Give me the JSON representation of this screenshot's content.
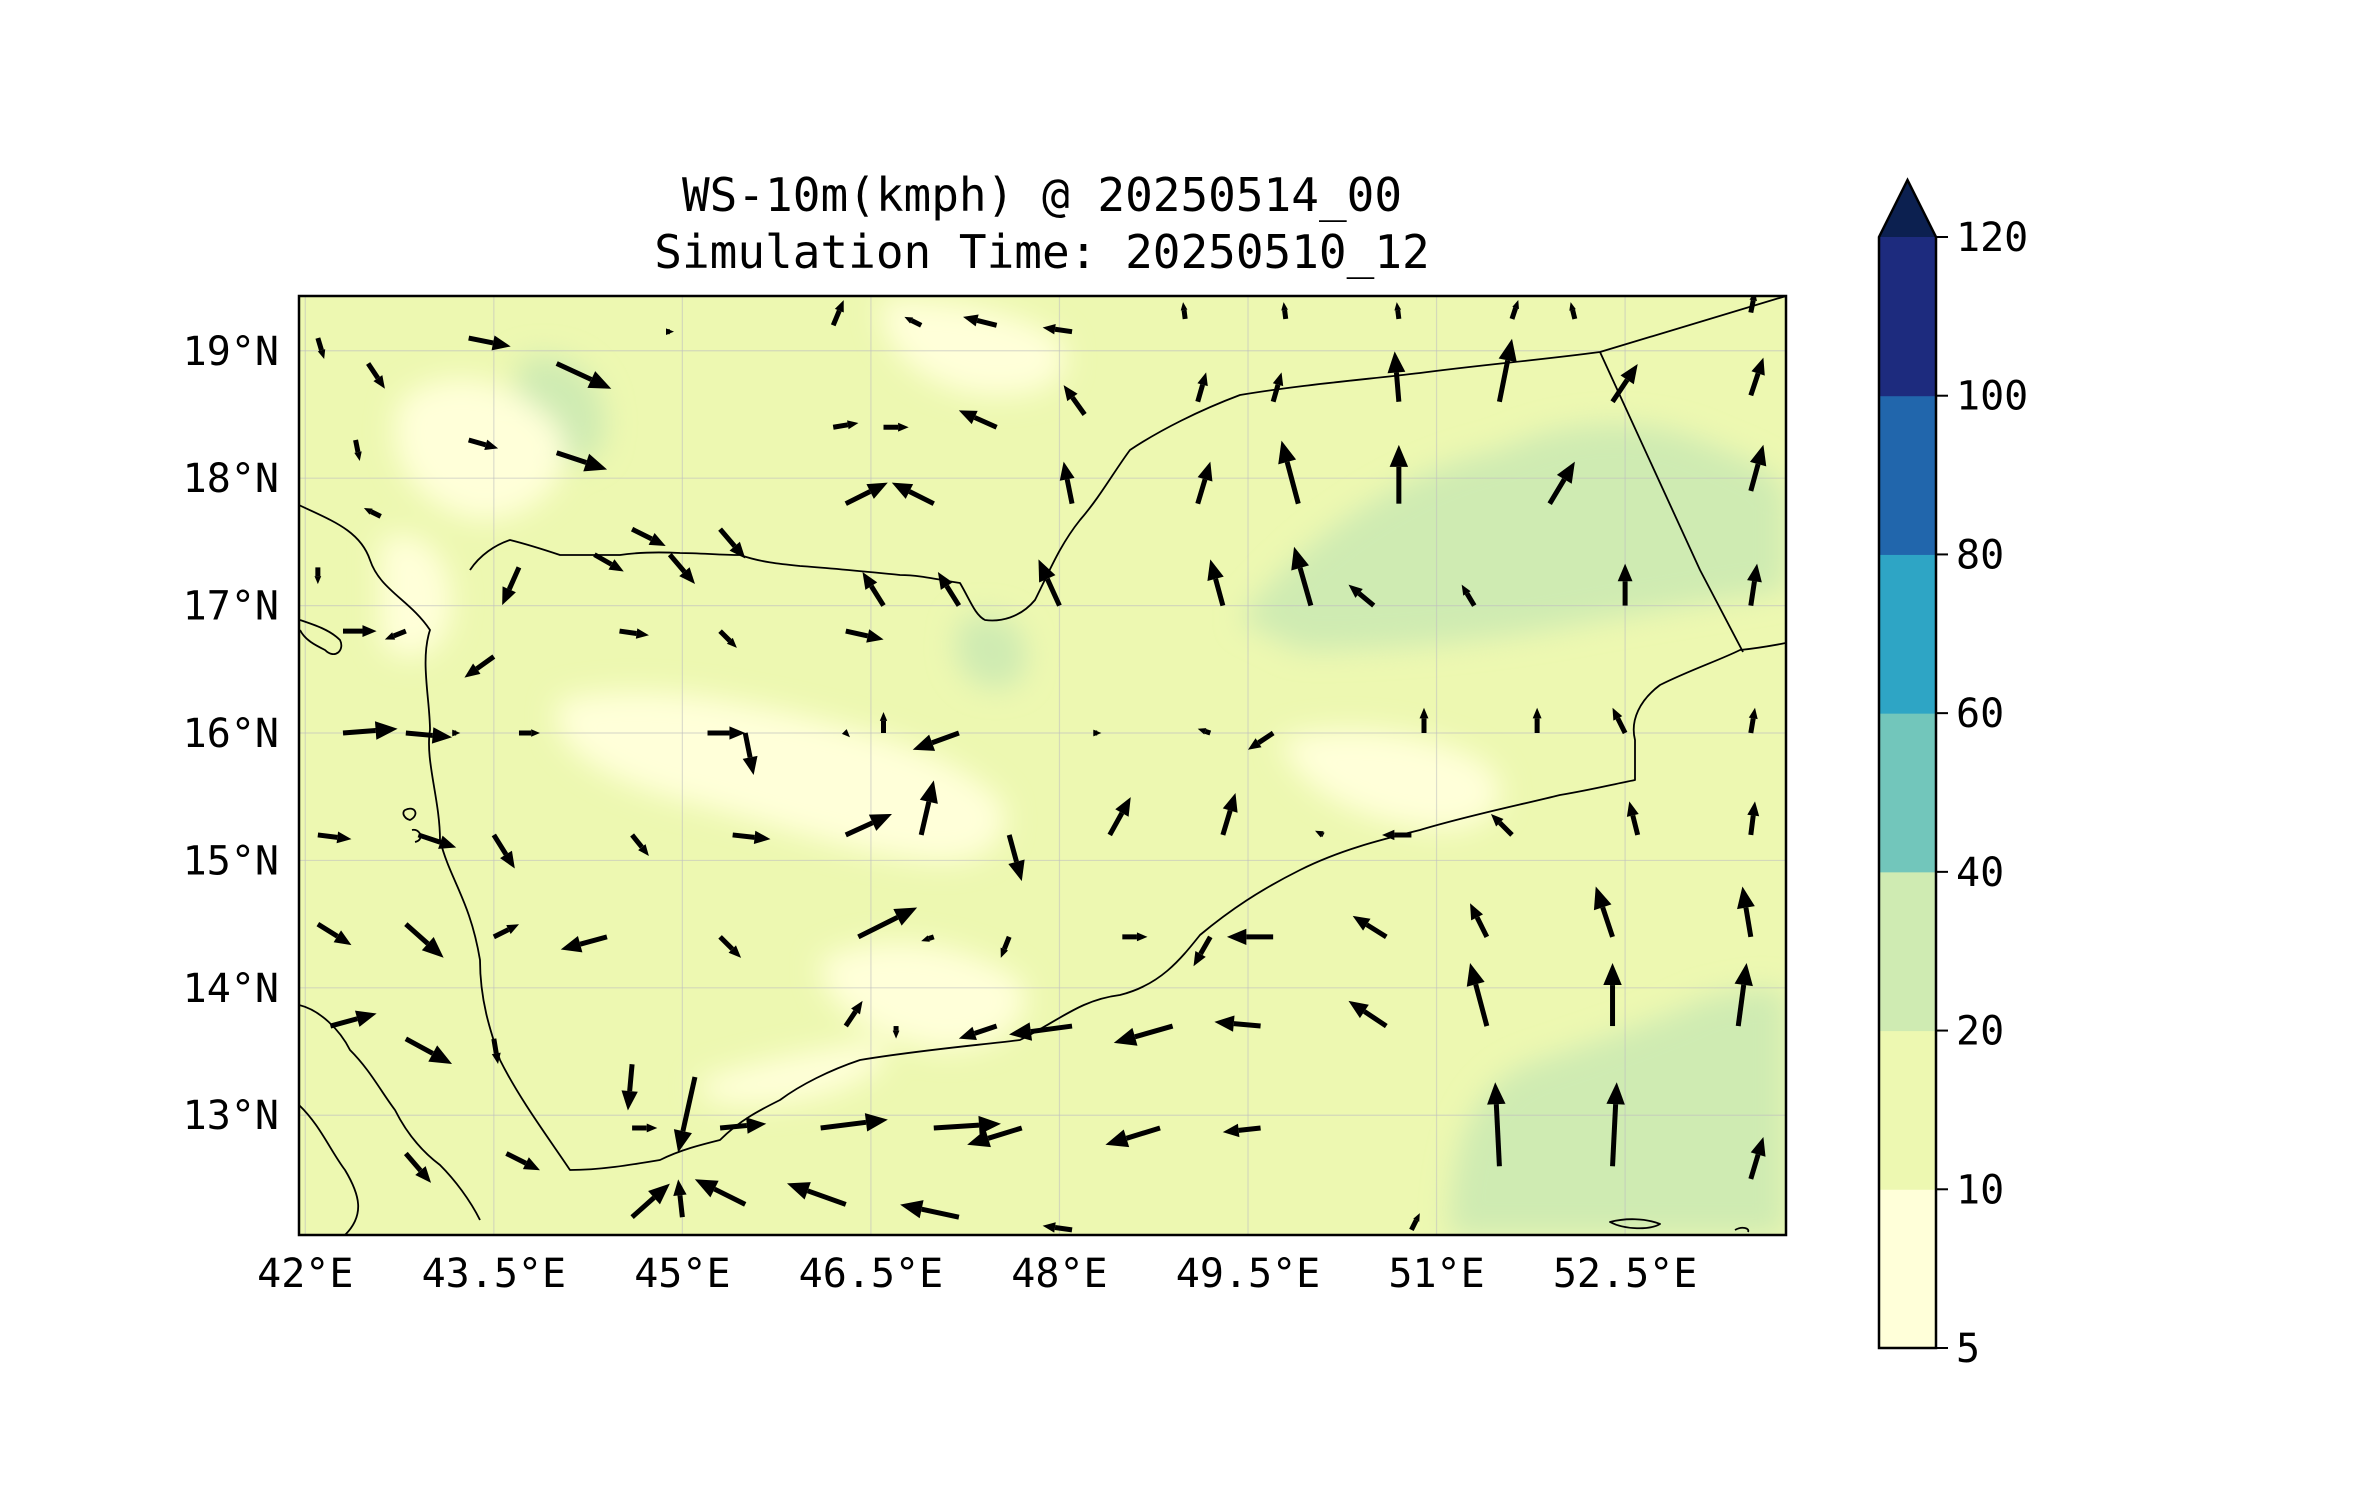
{
  "title": {
    "line1": "WS-10m(kmph) @ 20250514_00",
    "line2": "Simulation Time: 20250510_12"
  },
  "map": {
    "lon_range": [
      41.95,
      53.78
    ],
    "lat_range": [
      12.06,
      19.43
    ],
    "lon_ticks": [
      {
        "value": 42.0,
        "label": "42°E"
      },
      {
        "value": 43.5,
        "label": "43.5°E"
      },
      {
        "value": 45.0,
        "label": "45°E"
      },
      {
        "value": 46.5,
        "label": "46.5°E"
      },
      {
        "value": 48.0,
        "label": "48°E"
      },
      {
        "value": 49.5,
        "label": "49.5°E"
      },
      {
        "value": 51.0,
        "label": "51°E"
      },
      {
        "value": 52.5,
        "label": "52.5°E"
      }
    ],
    "lat_ticks": [
      {
        "value": 19,
        "label": "19°N"
      },
      {
        "value": 18,
        "label": "18°N"
      },
      {
        "value": 17,
        "label": "17°N"
      },
      {
        "value": 16,
        "label": "16°N"
      },
      {
        "value": 15,
        "label": "15°N"
      },
      {
        "value": 14,
        "label": "14°N"
      },
      {
        "value": 13,
        "label": "13°N"
      }
    ],
    "gridlines": true,
    "arrow_color": "#000000"
  },
  "colorbar": {
    "extend": "max",
    "extend_color": "#0c2050",
    "ticks": [
      "5",
      "10",
      "20",
      "40",
      "60",
      "80",
      "100",
      "120"
    ],
    "bins": [
      {
        "from": 5,
        "to": 10,
        "color": "#ffffd9"
      },
      {
        "from": 10,
        "to": 20,
        "color": "#edf8b1"
      },
      {
        "from": 20,
        "to": 40,
        "color": "#cfebb2"
      },
      {
        "from": 40,
        "to": 60,
        "color": "#72c6bb"
      },
      {
        "from": 60,
        "to": 80,
        "color": "#2ea5c5"
      },
      {
        "from": 80,
        "to": 100,
        "color": "#2166ac"
      },
      {
        "from": 100,
        "to": 120,
        "color": "#1d2b7e"
      }
    ]
  },
  "wind_vectors": [
    {
      "lon": 42.1,
      "lat": 19.1,
      "u": 3,
      "v": -10
    },
    {
      "lon": 42.5,
      "lat": 18.9,
      "u": 8,
      "v": -12
    },
    {
      "lon": 43.3,
      "lat": 19.1,
      "u": 20,
      "v": -4
    },
    {
      "lon": 44.0,
      "lat": 18.9,
      "u": 26,
      "v": -12
    },
    {
      "lon": 44.9,
      "lat": 19.15,
      "u": 2,
      "v": 0
    },
    {
      "lon": 46.2,
      "lat": 19.2,
      "u": 5,
      "v": 12
    },
    {
      "lon": 46.9,
      "lat": 19.2,
      "u": -8,
      "v": 4
    },
    {
      "lon": 47.5,
      "lat": 19.2,
      "u": -16,
      "v": 4
    },
    {
      "lon": 48.1,
      "lat": 19.15,
      "u": -14,
      "v": 2
    },
    {
      "lon": 49.0,
      "lat": 19.25,
      "u": -1,
      "v": 8
    },
    {
      "lon": 49.8,
      "lat": 19.25,
      "u": -1,
      "v": 8
    },
    {
      "lon": 50.7,
      "lat": 19.25,
      "u": -1,
      "v": 8
    },
    {
      "lon": 51.6,
      "lat": 19.25,
      "u": 3,
      "v": 9
    },
    {
      "lon": 52.1,
      "lat": 19.25,
      "u": -2,
      "v": 8
    },
    {
      "lon": 53.5,
      "lat": 19.3,
      "u": 2,
      "v": 10
    },
    {
      "lon": 42.4,
      "lat": 18.3,
      "u": 2,
      "v": -10
    },
    {
      "lon": 43.3,
      "lat": 18.3,
      "u": 14,
      "v": -4
    },
    {
      "lon": 44.0,
      "lat": 18.2,
      "u": 24,
      "v": -8
    },
    {
      "lon": 46.2,
      "lat": 18.4,
      "u": 12,
      "v": 2
    },
    {
      "lon": 46.6,
      "lat": 18.4,
      "u": 12,
      "v": 0
    },
    {
      "lon": 47.5,
      "lat": 18.4,
      "u": -18,
      "v": 8
    },
    {
      "lon": 48.2,
      "lat": 18.5,
      "u": -10,
      "v": 14
    },
    {
      "lon": 49.1,
      "lat": 18.6,
      "u": 4,
      "v": 14
    },
    {
      "lon": 49.7,
      "lat": 18.6,
      "u": 4,
      "v": 14
    },
    {
      "lon": 50.7,
      "lat": 18.6,
      "u": -2,
      "v": 24
    },
    {
      "lon": 51.5,
      "lat": 18.6,
      "u": 6,
      "v": 30
    },
    {
      "lon": 52.4,
      "lat": 18.6,
      "u": 12,
      "v": 18
    },
    {
      "lon": 53.5,
      "lat": 18.65,
      "u": 6,
      "v": 18
    },
    {
      "lon": 42.6,
      "lat": 17.7,
      "u": -8,
      "v": 4
    },
    {
      "lon": 43.7,
      "lat": 17.3,
      "u": -8,
      "v": -18
    },
    {
      "lon": 44.6,
      "lat": 17.6,
      "u": 16,
      "v": -8
    },
    {
      "lon": 45.3,
      "lat": 17.6,
      "u": 12,
      "v": -14
    },
    {
      "lon": 46.3,
      "lat": 17.8,
      "u": 20,
      "v": 10
    },
    {
      "lon": 47.0,
      "lat": 17.8,
      "u": -20,
      "v": 10
    },
    {
      "lon": 48.1,
      "lat": 17.8,
      "u": -4,
      "v": 20
    },
    {
      "lon": 49.1,
      "lat": 17.8,
      "u": 6,
      "v": 20
    },
    {
      "lon": 49.9,
      "lat": 17.8,
      "u": -8,
      "v": 30
    },
    {
      "lon": 50.7,
      "lat": 17.8,
      "u": 0,
      "v": 28
    },
    {
      "lon": 51.9,
      "lat": 17.8,
      "u": 12,
      "v": 20
    },
    {
      "lon": 53.5,
      "lat": 17.9,
      "u": 6,
      "v": 22
    },
    {
      "lon": 42.1,
      "lat": 17.3,
      "u": 0,
      "v": -8
    },
    {
      "lon": 42.8,
      "lat": 16.8,
      "u": -10,
      "v": -4
    },
    {
      "lon": 44.3,
      "lat": 17.4,
      "u": 14,
      "v": -8
    },
    {
      "lon": 44.9,
      "lat": 17.4,
      "u": 12,
      "v": -14
    },
    {
      "lon": 46.6,
      "lat": 17.0,
      "u": -10,
      "v": 16
    },
    {
      "lon": 47.2,
      "lat": 17.0,
      "u": -10,
      "v": 16
    },
    {
      "lon": 48.0,
      "lat": 17.0,
      "u": -10,
      "v": 22
    },
    {
      "lon": 49.3,
      "lat": 17.0,
      "u": -6,
      "v": 22
    },
    {
      "lon": 50.0,
      "lat": 17.0,
      "u": -8,
      "v": 28
    },
    {
      "lon": 50.5,
      "lat": 17.0,
      "u": -12,
      "v": 10
    },
    {
      "lon": 51.3,
      "lat": 17.0,
      "u": -6,
      "v": 10
    },
    {
      "lon": 52.5,
      "lat": 17.0,
      "u": 0,
      "v": 20
    },
    {
      "lon": 53.5,
      "lat": 17.0,
      "u": 3,
      "v": 20
    },
    {
      "lon": 42.3,
      "lat": 16.8,
      "u": 16,
      "v": 0
    },
    {
      "lon": 43.5,
      "lat": 16.6,
      "u": -14,
      "v": -10
    },
    {
      "lon": 44.5,
      "lat": 16.8,
      "u": 14,
      "v": -2
    },
    {
      "lon": 45.3,
      "lat": 16.8,
      "u": 8,
      "v": -8
    },
    {
      "lon": 46.3,
      "lat": 16.8,
      "u": 18,
      "v": -4
    },
    {
      "lon": 42.3,
      "lat": 16.0,
      "u": 26,
      "v": 2
    },
    {
      "lon": 42.8,
      "lat": 16.0,
      "u": 22,
      "v": -2
    },
    {
      "lon": 43.2,
      "lat": 16.0,
      "u": 2,
      "v": 0
    },
    {
      "lon": 43.7,
      "lat": 16.0,
      "u": 10,
      "v": 0
    },
    {
      "lon": 45.5,
      "lat": 16.0,
      "u": 4,
      "v": -20
    },
    {
      "lon": 45.2,
      "lat": 16.0,
      "u": 18,
      "v": 0
    },
    {
      "lon": 46.3,
      "lat": 16.0,
      "u": 2,
      "v": -2
    },
    {
      "lon": 46.6,
      "lat": 16.0,
      "u": 0,
      "v": 10
    },
    {
      "lon": 47.2,
      "lat": 16.0,
      "u": -22,
      "v": -8
    },
    {
      "lon": 48.3,
      "lat": 16.0,
      "u": 2,
      "v": 0
    },
    {
      "lon": 49.2,
      "lat": 16.0,
      "u": -6,
      "v": 2
    },
    {
      "lon": 49.7,
      "lat": 16.0,
      "u": -12,
      "v": -8
    },
    {
      "lon": 50.9,
      "lat": 16.0,
      "u": 0,
      "v": 12
    },
    {
      "lon": 51.8,
      "lat": 16.0,
      "u": 0,
      "v": 12
    },
    {
      "lon": 52.5,
      "lat": 16.0,
      "u": -6,
      "v": 12
    },
    {
      "lon": 53.5,
      "lat": 16.0,
      "u": 2,
      "v": 12
    },
    {
      "lon": 42.1,
      "lat": 15.2,
      "u": 16,
      "v": -2
    },
    {
      "lon": 42.9,
      "lat": 15.2,
      "u": 18,
      "v": -6
    },
    {
      "lon": 43.5,
      "lat": 15.2,
      "u": 10,
      "v": -16
    },
    {
      "lon": 44.6,
      "lat": 15.2,
      "u": 8,
      "v": -10
    },
    {
      "lon": 45.4,
      "lat": 15.2,
      "u": 18,
      "v": -2
    },
    {
      "lon": 46.3,
      "lat": 15.2,
      "u": 22,
      "v": 10
    },
    {
      "lon": 46.9,
      "lat": 15.2,
      "u": 6,
      "v": 26
    },
    {
      "lon": 47.6,
      "lat": 15.2,
      "u": 6,
      "v": -22
    },
    {
      "lon": 48.4,
      "lat": 15.2,
      "u": 10,
      "v": 18
    },
    {
      "lon": 49.3,
      "lat": 15.2,
      "u": 6,
      "v": 20
    },
    {
      "lon": 50.1,
      "lat": 15.2,
      "u": -4,
      "v": 2
    },
    {
      "lon": 50.8,
      "lat": 15.2,
      "u": -14,
      "v": 0
    },
    {
      "lon": 51.6,
      "lat": 15.2,
      "u": -10,
      "v": 10
    },
    {
      "lon": 52.6,
      "lat": 15.2,
      "u": -4,
      "v": 16
    },
    {
      "lon": 53.5,
      "lat": 15.2,
      "u": 2,
      "v": 16
    },
    {
      "lon": 42.1,
      "lat": 14.5,
      "u": 16,
      "v": -10
    },
    {
      "lon": 42.8,
      "lat": 14.5,
      "u": 18,
      "v": -16
    },
    {
      "lon": 43.5,
      "lat": 14.4,
      "u": 12,
      "v": 6
    },
    {
      "lon": 44.4,
      "lat": 14.4,
      "u": -22,
      "v": -6
    },
    {
      "lon": 45.3,
      "lat": 14.4,
      "u": 10,
      "v": -10
    },
    {
      "lon": 46.4,
      "lat": 14.4,
      "u": 28,
      "v": 14
    },
    {
      "lon": 47.0,
      "lat": 14.4,
      "u": -6,
      "v": -2
    },
    {
      "lon": 47.6,
      "lat": 14.4,
      "u": -4,
      "v": -10
    },
    {
      "lon": 48.5,
      "lat": 14.4,
      "u": 12,
      "v": 0
    },
    {
      "lon": 49.2,
      "lat": 14.4,
      "u": -8,
      "v": -14
    },
    {
      "lon": 49.7,
      "lat": 14.4,
      "u": -22,
      "v": 0
    },
    {
      "lon": 50.6,
      "lat": 14.4,
      "u": -16,
      "v": 10
    },
    {
      "lon": 51.4,
      "lat": 14.4,
      "u": -8,
      "v": 16
    },
    {
      "lon": 52.4,
      "lat": 14.4,
      "u": -8,
      "v": 24
    },
    {
      "lon": 53.5,
      "lat": 14.4,
      "u": -4,
      "v": 24
    },
    {
      "lon": 42.2,
      "lat": 13.7,
      "u": 22,
      "v": 6
    },
    {
      "lon": 42.8,
      "lat": 13.6,
      "u": 22,
      "v": -12
    },
    {
      "lon": 43.5,
      "lat": 13.6,
      "u": 2,
      "v": -12
    },
    {
      "lon": 44.6,
      "lat": 13.4,
      "u": -2,
      "v": -22
    },
    {
      "lon": 45.1,
      "lat": 13.3,
      "u": -8,
      "v": -36
    },
    {
      "lon": 46.3,
      "lat": 13.7,
      "u": 8,
      "v": 12
    },
    {
      "lon": 46.7,
      "lat": 13.7,
      "u": 0,
      "v": -6
    },
    {
      "lon": 47.5,
      "lat": 13.7,
      "u": -18,
      "v": -6
    },
    {
      "lon": 48.1,
      "lat": 13.7,
      "u": -30,
      "v": -4
    },
    {
      "lon": 48.9,
      "lat": 13.7,
      "u": -28,
      "v": -8
    },
    {
      "lon": 49.6,
      "lat": 13.7,
      "u": -22,
      "v": 2
    },
    {
      "lon": 50.6,
      "lat": 13.7,
      "u": -18,
      "v": 12
    },
    {
      "lon": 51.4,
      "lat": 13.7,
      "u": -8,
      "v": 30
    },
    {
      "lon": 52.4,
      "lat": 13.7,
      "u": 0,
      "v": 30
    },
    {
      "lon": 53.4,
      "lat": 13.7,
      "u": 4,
      "v": 30
    },
    {
      "lon": 42.1,
      "lat": 12.9,
      "u": 0,
      "v": 0
    },
    {
      "lon": 42.8,
      "lat": 12.7,
      "u": 12,
      "v": -14
    },
    {
      "lon": 43.6,
      "lat": 12.7,
      "u": 16,
      "v": -8
    },
    {
      "lon": 44.6,
      "lat": 12.9,
      "u": 12,
      "v": 0
    },
    {
      "lon": 45.3,
      "lat": 12.9,
      "u": 22,
      "v": 2
    },
    {
      "lon": 46.1,
      "lat": 12.9,
      "u": 32,
      "v": 4
    },
    {
      "lon": 47.0,
      "lat": 12.9,
      "u": 32,
      "v": 2
    },
    {
      "lon": 47.7,
      "lat": 12.9,
      "u": -26,
      "v": -8
    },
    {
      "lon": 48.8,
      "lat": 12.9,
      "u": -26,
      "v": -8
    },
    {
      "lon": 49.6,
      "lat": 12.9,
      "u": -18,
      "v": -2
    },
    {
      "lon": 51.5,
      "lat": 12.6,
      "u": -2,
      "v": 40
    },
    {
      "lon": 52.4,
      "lat": 12.6,
      "u": 2,
      "v": 40
    },
    {
      "lon": 53.5,
      "lat": 12.5,
      "u": 6,
      "v": 20
    },
    {
      "lon": 44.6,
      "lat": 12.2,
      "u": 18,
      "v": 16
    },
    {
      "lon": 45.0,
      "lat": 12.2,
      "u": -2,
      "v": 18
    },
    {
      "lon": 45.5,
      "lat": 12.3,
      "u": -24,
      "v": 12
    },
    {
      "lon": 46.3,
      "lat": 12.3,
      "u": -28,
      "v": 10
    },
    {
      "lon": 47.2,
      "lat": 12.2,
      "u": -28,
      "v": 6
    },
    {
      "lon": 48.1,
      "lat": 12.1,
      "u": -14,
      "v": 2
    },
    {
      "lon": 50.8,
      "lat": 12.1,
      "u": 4,
      "v": 8
    }
  ]
}
